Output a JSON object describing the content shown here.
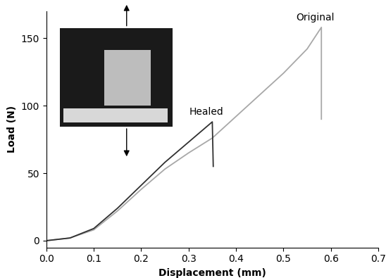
{
  "chart_data": {
    "type": "line",
    "x_label": "Displacement (mm)",
    "y_label": "Load (N)",
    "series": [
      {
        "name": "Original",
        "color": "#a8a8a8",
        "x": [
          0.0,
          0.05,
          0.1,
          0.15,
          0.2,
          0.25,
          0.3,
          0.35,
          0.4,
          0.45,
          0.5,
          0.55,
          0.58,
          0.58
        ],
        "values": [
          0,
          2,
          8,
          22,
          38,
          53,
          65,
          76,
          92,
          108,
          124,
          142,
          158,
          90
        ]
      },
      {
        "name": "Healed",
        "color": "#303030",
        "x": [
          0.0,
          0.05,
          0.1,
          0.15,
          0.2,
          0.25,
          0.3,
          0.35,
          0.352
        ],
        "values": [
          0,
          2,
          9,
          24,
          41,
          58,
          73,
          88,
          55
        ]
      }
    ],
    "xlim": [
      0.0,
      0.7
    ],
    "xticks": [
      0.0,
      0.1,
      0.2,
      0.3,
      0.4,
      0.5,
      0.6,
      0.7
    ],
    "ylim": [
      -5,
      170
    ],
    "yticks": [
      0,
      50,
      100,
      150
    ],
    "grid": false
  }
}
